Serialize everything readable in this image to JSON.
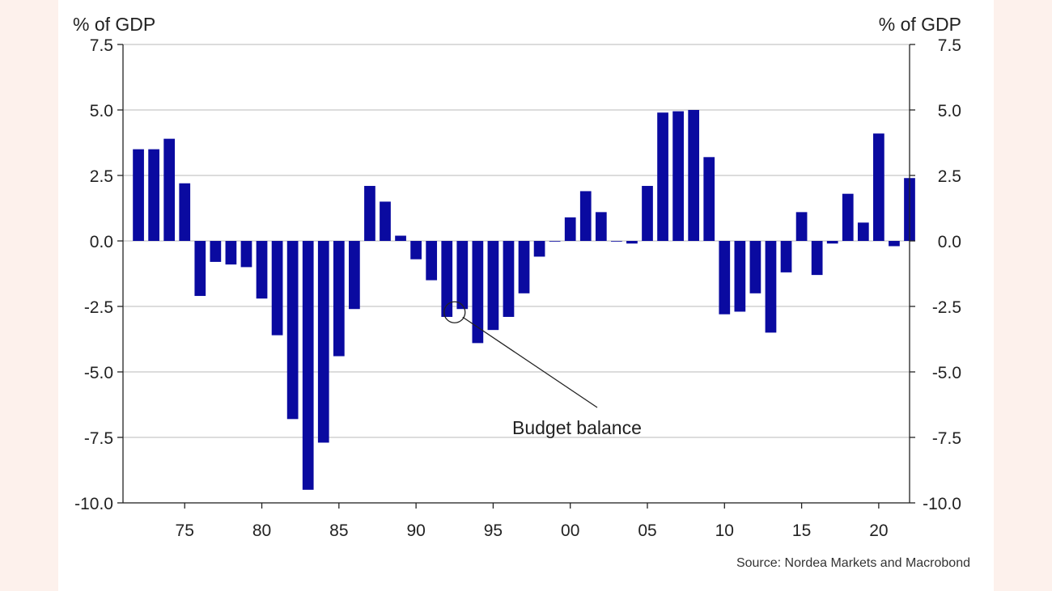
{
  "chart_data": {
    "type": "bar",
    "title": "",
    "y_axis_title_left": "% of GDP",
    "y_axis_title_right": "% of GDP",
    "ylim": [
      -10.0,
      7.5
    ],
    "y_ticks": [
      "7.5",
      "5.0",
      "2.5",
      "0.0",
      "-2.5",
      "-5.0",
      "-7.5",
      "-10.0"
    ],
    "y_tick_values": [
      7.5,
      5.0,
      2.5,
      0.0,
      -2.5,
      -5.0,
      -7.5,
      -10.0
    ],
    "x_tick_labels": [
      "75",
      "80",
      "85",
      "90",
      "95",
      "00",
      "05",
      "10",
      "15",
      "20"
    ],
    "x_tick_years": [
      1975,
      1980,
      1985,
      1990,
      1995,
      2000,
      2005,
      2010,
      2015,
      2020
    ],
    "xlim": [
      1971,
      2022
    ],
    "grid": true,
    "bar_color": "#0a0aa0",
    "series": [
      {
        "name": "Budget balance",
        "x": [
          1972,
          1973,
          1974,
          1975,
          1976,
          1977,
          1978,
          1979,
          1980,
          1981,
          1982,
          1983,
          1984,
          1985,
          1986,
          1987,
          1988,
          1989,
          1990,
          1991,
          1992,
          1993,
          1994,
          1995,
          1996,
          1997,
          1998,
          1999,
          2000,
          2001,
          2002,
          2003,
          2004,
          2005,
          2006,
          2007,
          2008,
          2009,
          2010,
          2011,
          2012,
          2013,
          2014,
          2015,
          2016,
          2017,
          2018,
          2019,
          2020,
          2021,
          2022
        ],
        "values": [
          3.5,
          3.5,
          3.9,
          2.2,
          -2.1,
          -0.8,
          -0.9,
          -1.0,
          -2.2,
          -3.6,
          -6.8,
          -9.5,
          -7.7,
          -4.4,
          -2.6,
          2.1,
          1.5,
          0.2,
          -0.7,
          -1.5,
          -2.9,
          -2.6,
          -3.9,
          -3.4,
          -2.9,
          -2.0,
          -0.6,
          0.0,
          0.9,
          1.9,
          1.1,
          0.0,
          -0.1,
          2.1,
          4.9,
          4.95,
          5.0,
          3.2,
          -2.8,
          -2.7,
          -2.0,
          -3.5,
          -1.2,
          1.1,
          -1.3,
          -0.1,
          1.8,
          0.7,
          4.1,
          -0.2,
          2.4
        ]
      }
    ],
    "annotation": "Budget balance",
    "source": "Source: Nordea Markets and Macrobond"
  }
}
